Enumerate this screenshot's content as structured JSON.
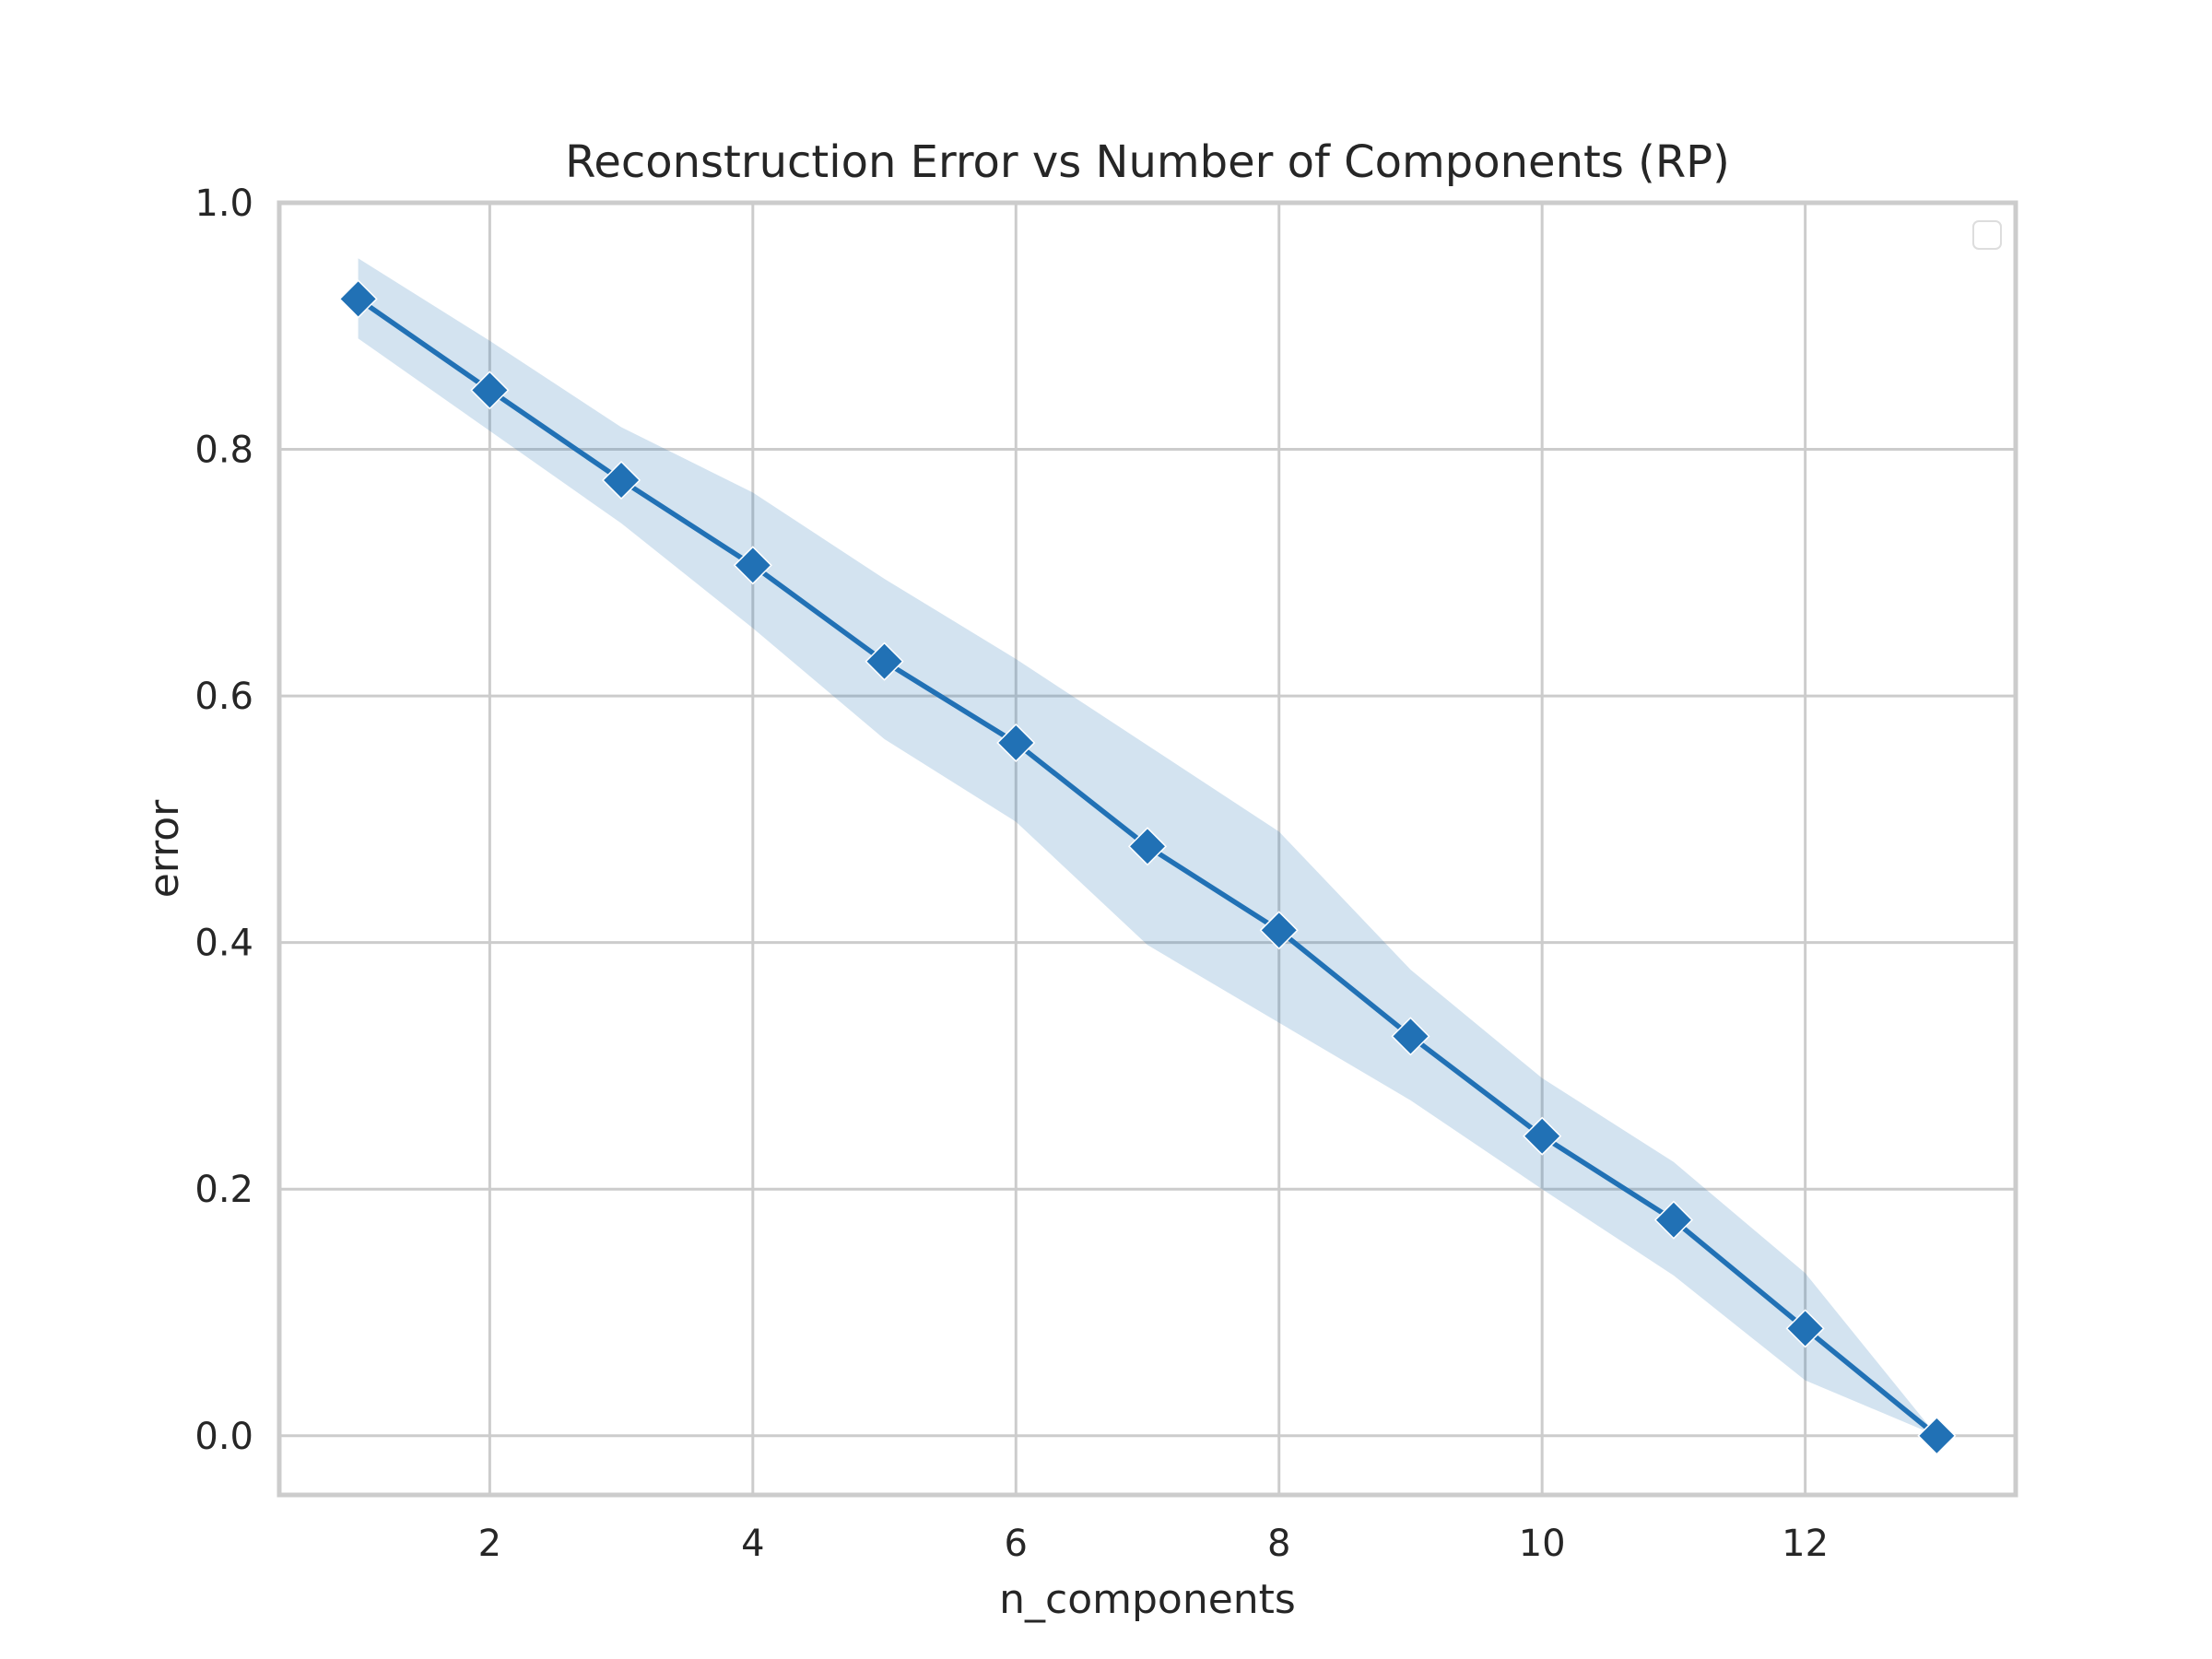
{
  "chart_data": {
    "type": "line",
    "title": "Reconstruction Error vs Number of Components (RP)",
    "xlabel": "n_components",
    "ylabel": "error",
    "xlim": [
      0.4,
      13.6
    ],
    "ylim": [
      -0.048,
      1.0
    ],
    "xticks": [
      2,
      4,
      6,
      8,
      10,
      12
    ],
    "xtick_labels": [
      "2",
      "4",
      "6",
      "8",
      "10",
      "12"
    ],
    "yticks": [
      0.0,
      0.2,
      0.4,
      0.6,
      0.8,
      1.0
    ],
    "ytick_labels": [
      "0.0",
      "0.2",
      "0.4",
      "0.6",
      "0.8",
      "1.0"
    ],
    "grid": true,
    "legend": {
      "placement": "top-right",
      "entries": []
    },
    "marker": "diamond",
    "colors": {
      "line": "#2171b5",
      "band": "#2171b5",
      "grid": "#cccccc",
      "frame": "#cccccc"
    },
    "series": [
      {
        "x": [
          1,
          2,
          3,
          4,
          5,
          6,
          7,
          8,
          9,
          10,
          11,
          12,
          13
        ],
        "values": [
          0.922,
          0.848,
          0.775,
          0.706,
          0.628,
          0.562,
          0.478,
          0.41,
          0.324,
          0.243,
          0.175,
          0.087,
          0.0
        ],
        "band_upper": [
          0.955,
          0.888,
          0.818,
          0.765,
          0.695,
          0.63,
          0.56,
          0.49,
          0.378,
          0.29,
          0.222,
          0.132,
          0.0
        ],
        "band_lower": [
          0.89,
          0.815,
          0.74,
          0.655,
          0.565,
          0.498,
          0.398,
          0.335,
          0.272,
          0.2,
          0.13,
          0.045,
          0.0
        ]
      }
    ]
  }
}
